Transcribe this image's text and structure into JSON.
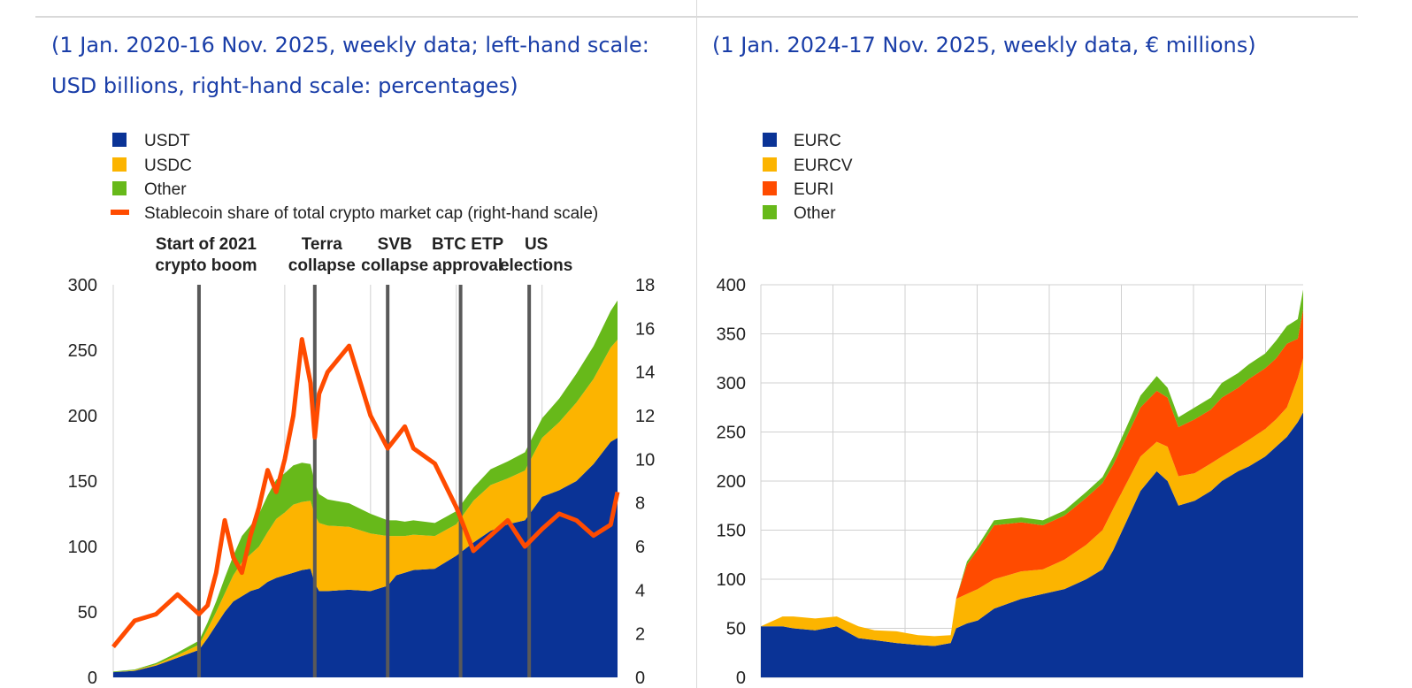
{
  "panels": {
    "left": {
      "subtitle": "(1 Jan. 2020-16 Nov. 2025, weekly data; left-hand scale: USD billions, right-hand scale: percentages)"
    },
    "right": {
      "subtitle": "(1 Jan. 2024-17 Nov. 2025, weekly data, € millions)"
    }
  },
  "colors": {
    "usdt": "#0a3396",
    "usdc": "#fcb400",
    "other": "#67b91a",
    "share": "#ff4b00",
    "eurc": "#0a3396",
    "eurcv": "#fcb400",
    "euri": "#ff4b00",
    "event": "#595959",
    "grid": "#d0d0d0"
  },
  "chart_data": [
    {
      "type": "area",
      "stacked": true,
      "x_range": [
        "2020-01-01",
        "2025-11-16"
      ],
      "ylim": [
        0,
        300
      ],
      "y_ticks": [
        "0",
        "50",
        "100",
        "150",
        "200",
        "250",
        "300"
      ],
      "y2lim": [
        0,
        18
      ],
      "y2_ticks": [
        "0",
        "2",
        "4",
        "6",
        "8",
        "10",
        "12",
        "14",
        "16",
        "18"
      ],
      "grid": "vertical",
      "legend_position": "top-left",
      "x": [
        2020.0,
        2020.25,
        2020.5,
        2020.75,
        2021.0,
        2021.1,
        2021.2,
        2021.3,
        2021.4,
        2021.5,
        2021.6,
        2021.7,
        2021.8,
        2021.9,
        2022.0,
        2022.1,
        2022.2,
        2022.3,
        2022.35,
        2022.4,
        2022.5,
        2022.75,
        2023.0,
        2023.2,
        2023.3,
        2023.4,
        2023.5,
        2023.75,
        2024.0,
        2024.2,
        2024.4,
        2024.6,
        2024.8,
        2025.0,
        2025.2,
        2025.4,
        2025.6,
        2025.8,
        2025.88
      ],
      "series": [
        {
          "name": "USDT",
          "kind": "area",
          "axis": "left",
          "values": [
            4,
            5,
            9,
            15,
            21,
            30,
            40,
            50,
            58,
            62,
            66,
            68,
            73,
            76,
            78,
            80,
            82,
            83,
            72,
            66,
            66,
            67,
            66,
            70,
            78,
            80,
            82,
            83,
            93,
            103,
            112,
            117,
            120,
            138,
            143,
            150,
            163,
            180,
            183
          ]
        },
        {
          "name": "USDC",
          "kind": "area",
          "axis": "left",
          "values": [
            0,
            0.5,
            1,
            2,
            4,
            7,
            10,
            14,
            20,
            26,
            28,
            32,
            38,
            45,
            48,
            52,
            52,
            52,
            52,
            52,
            50,
            48,
            44,
            38,
            30,
            28,
            27,
            25,
            24,
            32,
            35,
            35,
            38,
            45,
            52,
            60,
            65,
            72,
            75
          ]
        },
        {
          "name": "Other",
          "kind": "area",
          "axis": "left",
          "values": [
            0.5,
            0.5,
            1,
            2,
            3,
            5,
            8,
            12,
            15,
            20,
            22,
            25,
            28,
            30,
            30,
            30,
            30,
            28,
            25,
            22,
            20,
            18,
            15,
            12,
            12,
            11,
            11,
            10,
            10,
            10,
            12,
            13,
            14,
            15,
            18,
            22,
            25,
            28,
            30
          ]
        },
        {
          "name": "Stablecoin share of total crypto market cap (right-hand scale)",
          "kind": "line",
          "axis": "right",
          "values": [
            1.4,
            2.6,
            2.9,
            3.8,
            2.9,
            3.3,
            4.8,
            7.2,
            5.5,
            4.8,
            6.5,
            7.8,
            9.5,
            8.5,
            10.0,
            12.0,
            15.5,
            13.5,
            11.0,
            13.0,
            14.0,
            15.2,
            12.0,
            10.5,
            11.0,
            11.5,
            10.5,
            9.8,
            7.8,
            5.8,
            6.5,
            7.2,
            6.0,
            6.8,
            7.5,
            7.2,
            6.5,
            7.0,
            8.5
          ]
        }
      ],
      "events": [
        {
          "x": 2021.0,
          "line1": "Start of 2021",
          "line2": "crypto boom"
        },
        {
          "x": 2022.35,
          "line1": "Terra",
          "line2": "collapse"
        },
        {
          "x": 2023.2,
          "line1": "SVB",
          "line2": "collapse"
        },
        {
          "x": 2024.05,
          "line1": "BTC ETP",
          "line2": "approval"
        },
        {
          "x": 2024.85,
          "line1": "US",
          "line2": "elections"
        }
      ]
    },
    {
      "type": "area",
      "stacked": true,
      "x_range": [
        "2024-01-01",
        "2025-11-17"
      ],
      "ylim": [
        0,
        400
      ],
      "y_ticks": [
        "0",
        "50",
        "100",
        "150",
        "200",
        "250",
        "300",
        "350",
        "400"
      ],
      "grid": "both",
      "legend_position": "top-left",
      "x": [
        0.0,
        0.04,
        0.06,
        0.1,
        0.14,
        0.18,
        0.21,
        0.25,
        0.29,
        0.32,
        0.35,
        0.36,
        0.38,
        0.4,
        0.43,
        0.48,
        0.52,
        0.56,
        0.6,
        0.63,
        0.65,
        0.7,
        0.73,
        0.75,
        0.77,
        0.8,
        0.83,
        0.85,
        0.88,
        0.9,
        0.93,
        0.95,
        0.97,
        0.99,
        1.0
      ],
      "series": [
        {
          "name": "EURC",
          "values": [
            52,
            52,
            50,
            48,
            52,
            40,
            38,
            35,
            33,
            32,
            35,
            50,
            55,
            58,
            70,
            80,
            85,
            90,
            100,
            110,
            130,
            190,
            210,
            200,
            175,
            180,
            190,
            200,
            210,
            215,
            225,
            235,
            245,
            260,
            270
          ]
        },
        {
          "name": "EURCV",
          "values": [
            0,
            10,
            12,
            12,
            10,
            12,
            10,
            12,
            10,
            10,
            8,
            30,
            30,
            32,
            30,
            28,
            25,
            30,
            35,
            40,
            42,
            35,
            30,
            35,
            30,
            28,
            28,
            25,
            25,
            27,
            28,
            28,
            30,
            45,
            55
          ]
        },
        {
          "name": "EURI",
          "values": [
            0,
            0,
            0,
            0,
            0,
            0,
            0,
            0,
            0,
            0,
            0,
            0,
            30,
            40,
            55,
            50,
            45,
            45,
            48,
            48,
            45,
            50,
            52,
            50,
            50,
            55,
            55,
            60,
            60,
            62,
            62,
            62,
            65,
            40,
            50
          ]
        },
        {
          "name": "Other",
          "values": [
            0,
            0,
            0,
            0,
            0,
            0,
            0,
            0,
            0,
            0,
            0,
            0,
            3,
            4,
            5,
            5,
            5,
            5,
            6,
            6,
            8,
            12,
            15,
            10,
            10,
            12,
            12,
            15,
            15,
            15,
            15,
            18,
            18,
            20,
            20
          ]
        }
      ]
    }
  ]
}
